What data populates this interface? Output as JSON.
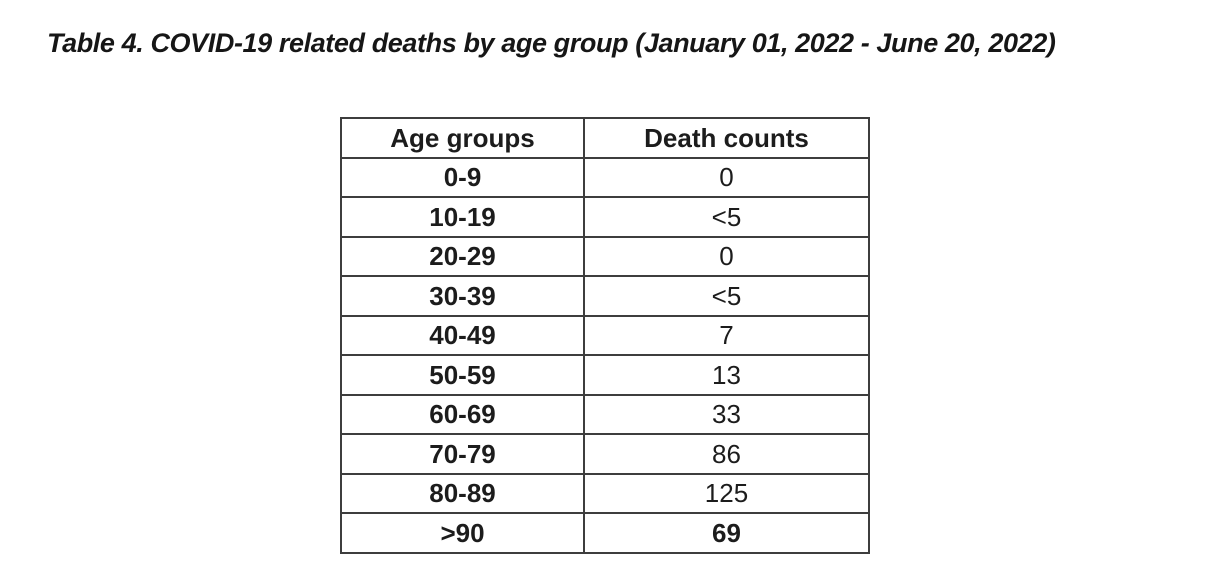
{
  "title": "Table 4. COVID-19 related deaths by age group (January 01, 2022 - June 20, 2022)",
  "table": {
    "headers": [
      "Age groups",
      "Death counts"
    ],
    "rows": [
      {
        "age": "0-9",
        "count": "0"
      },
      {
        "age": "10-19",
        "count": "<5"
      },
      {
        "age": "20-29",
        "count": "0"
      },
      {
        "age": "30-39",
        "count": "<5"
      },
      {
        "age": "40-49",
        "count": "7"
      },
      {
        "age": "50-59",
        "count": "13"
      },
      {
        "age": "60-69",
        "count": "33"
      },
      {
        "age": "70-79",
        "count": "86"
      },
      {
        "age": "80-89",
        "count": "125"
      },
      {
        "age": ">90",
        "count": "69"
      }
    ]
  },
  "colors": {
    "background": "#ffffff",
    "text": "#1c1c1c",
    "border": "#3d3d3d"
  },
  "chart_data": {
    "type": "table",
    "title": "Table 4. COVID-19 related deaths by age group (January 01, 2022 - June 20, 2022)",
    "columns": [
      "Age groups",
      "Death counts"
    ],
    "categories": [
      "0-9",
      "10-19",
      "20-29",
      "30-39",
      "40-49",
      "50-59",
      "60-69",
      "70-79",
      "80-89",
      ">90"
    ],
    "values": [
      "0",
      "<5",
      "0",
      "<5",
      "7",
      "13",
      "33",
      "86",
      "125",
      "69"
    ]
  }
}
